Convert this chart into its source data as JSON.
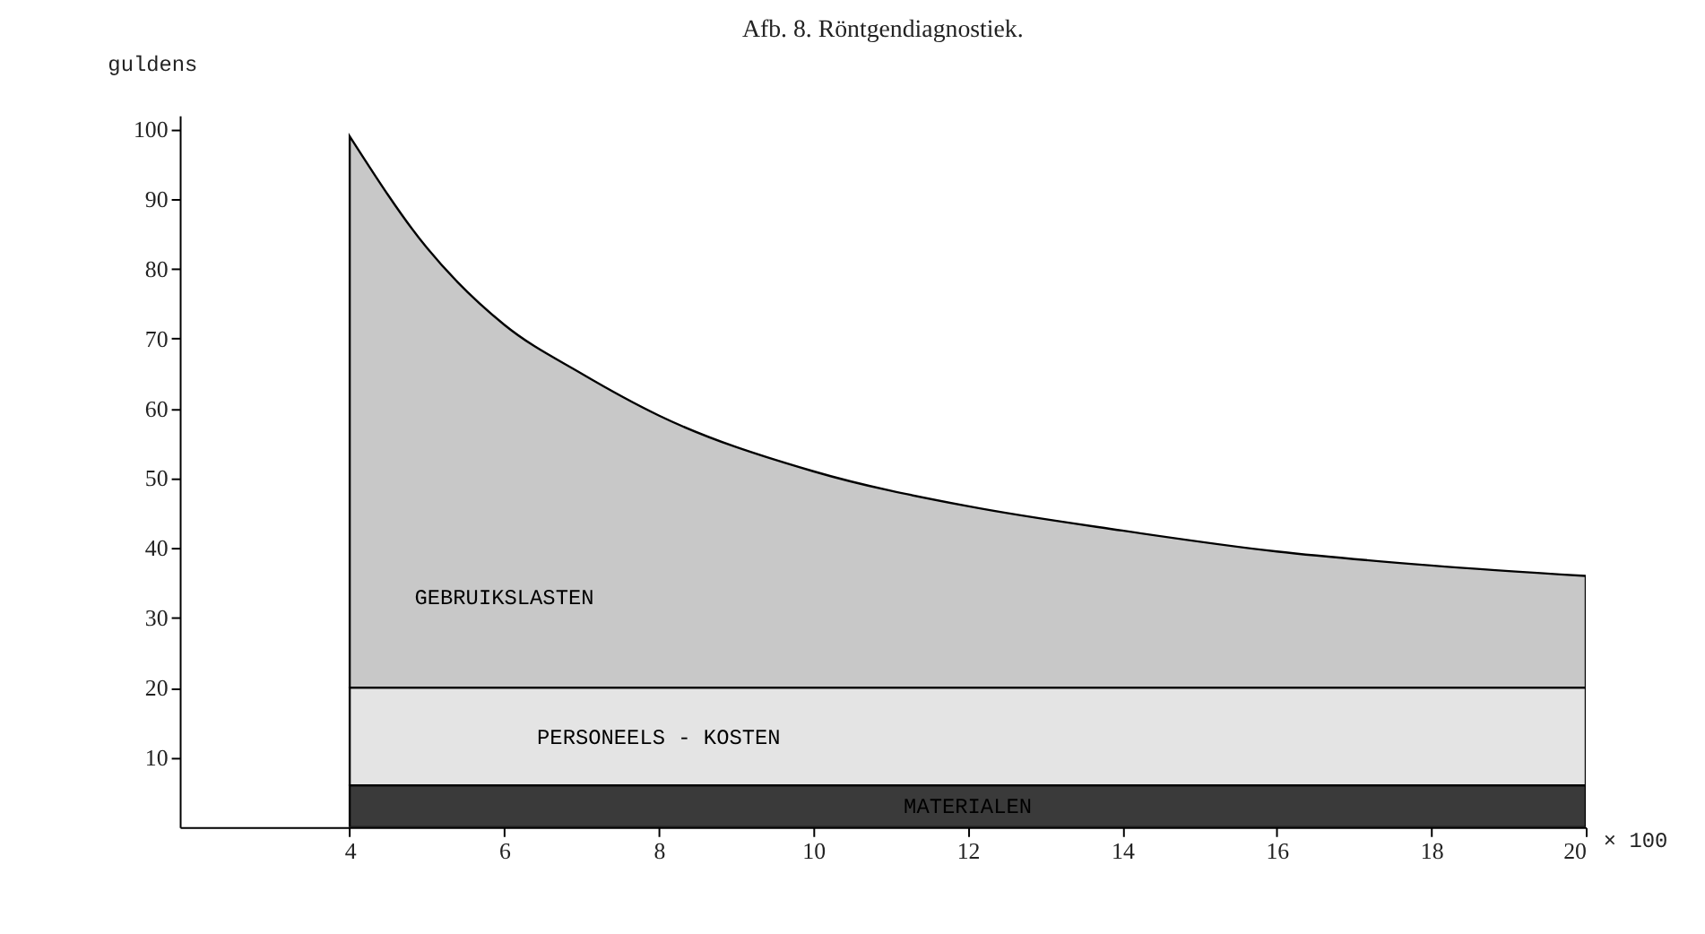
{
  "chart_data": {
    "type": "area",
    "title": "Afb. 8.   Röntgendiagnostiek.",
    "ylabel": "guldens",
    "xlabel": "× 100",
    "x": [
      4,
      5,
      6,
      7,
      8,
      10,
      12,
      14,
      16,
      18,
      20
    ],
    "stacked": true,
    "series": [
      {
        "name": "MATERIALEN",
        "color": "#3a3a3a",
        "values": [
          6,
          6,
          6,
          6,
          6,
          6,
          6,
          6,
          6,
          6,
          6
        ]
      },
      {
        "name": "PERSONEELS - KOSTEN",
        "color": "#e4e4e4",
        "values": [
          14,
          14,
          14,
          14,
          14,
          14,
          14,
          14,
          14,
          14,
          14
        ]
      },
      {
        "name": "GEBRUIKSLASTEN",
        "color": "#c8c8c8",
        "values": [
          79,
          63,
          52,
          45,
          39,
          31,
          26,
          22.5,
          19.5,
          17.5,
          16
        ]
      }
    ],
    "xlim": [
      1.8,
      20
    ],
    "xticks": [
      4,
      6,
      8,
      10,
      12,
      14,
      16,
      18,
      20
    ],
    "ylim": [
      0,
      102
    ],
    "yticks": [
      10,
      20,
      30,
      40,
      50,
      60,
      70,
      80,
      90,
      100
    ],
    "grid": false,
    "legend": false
  }
}
